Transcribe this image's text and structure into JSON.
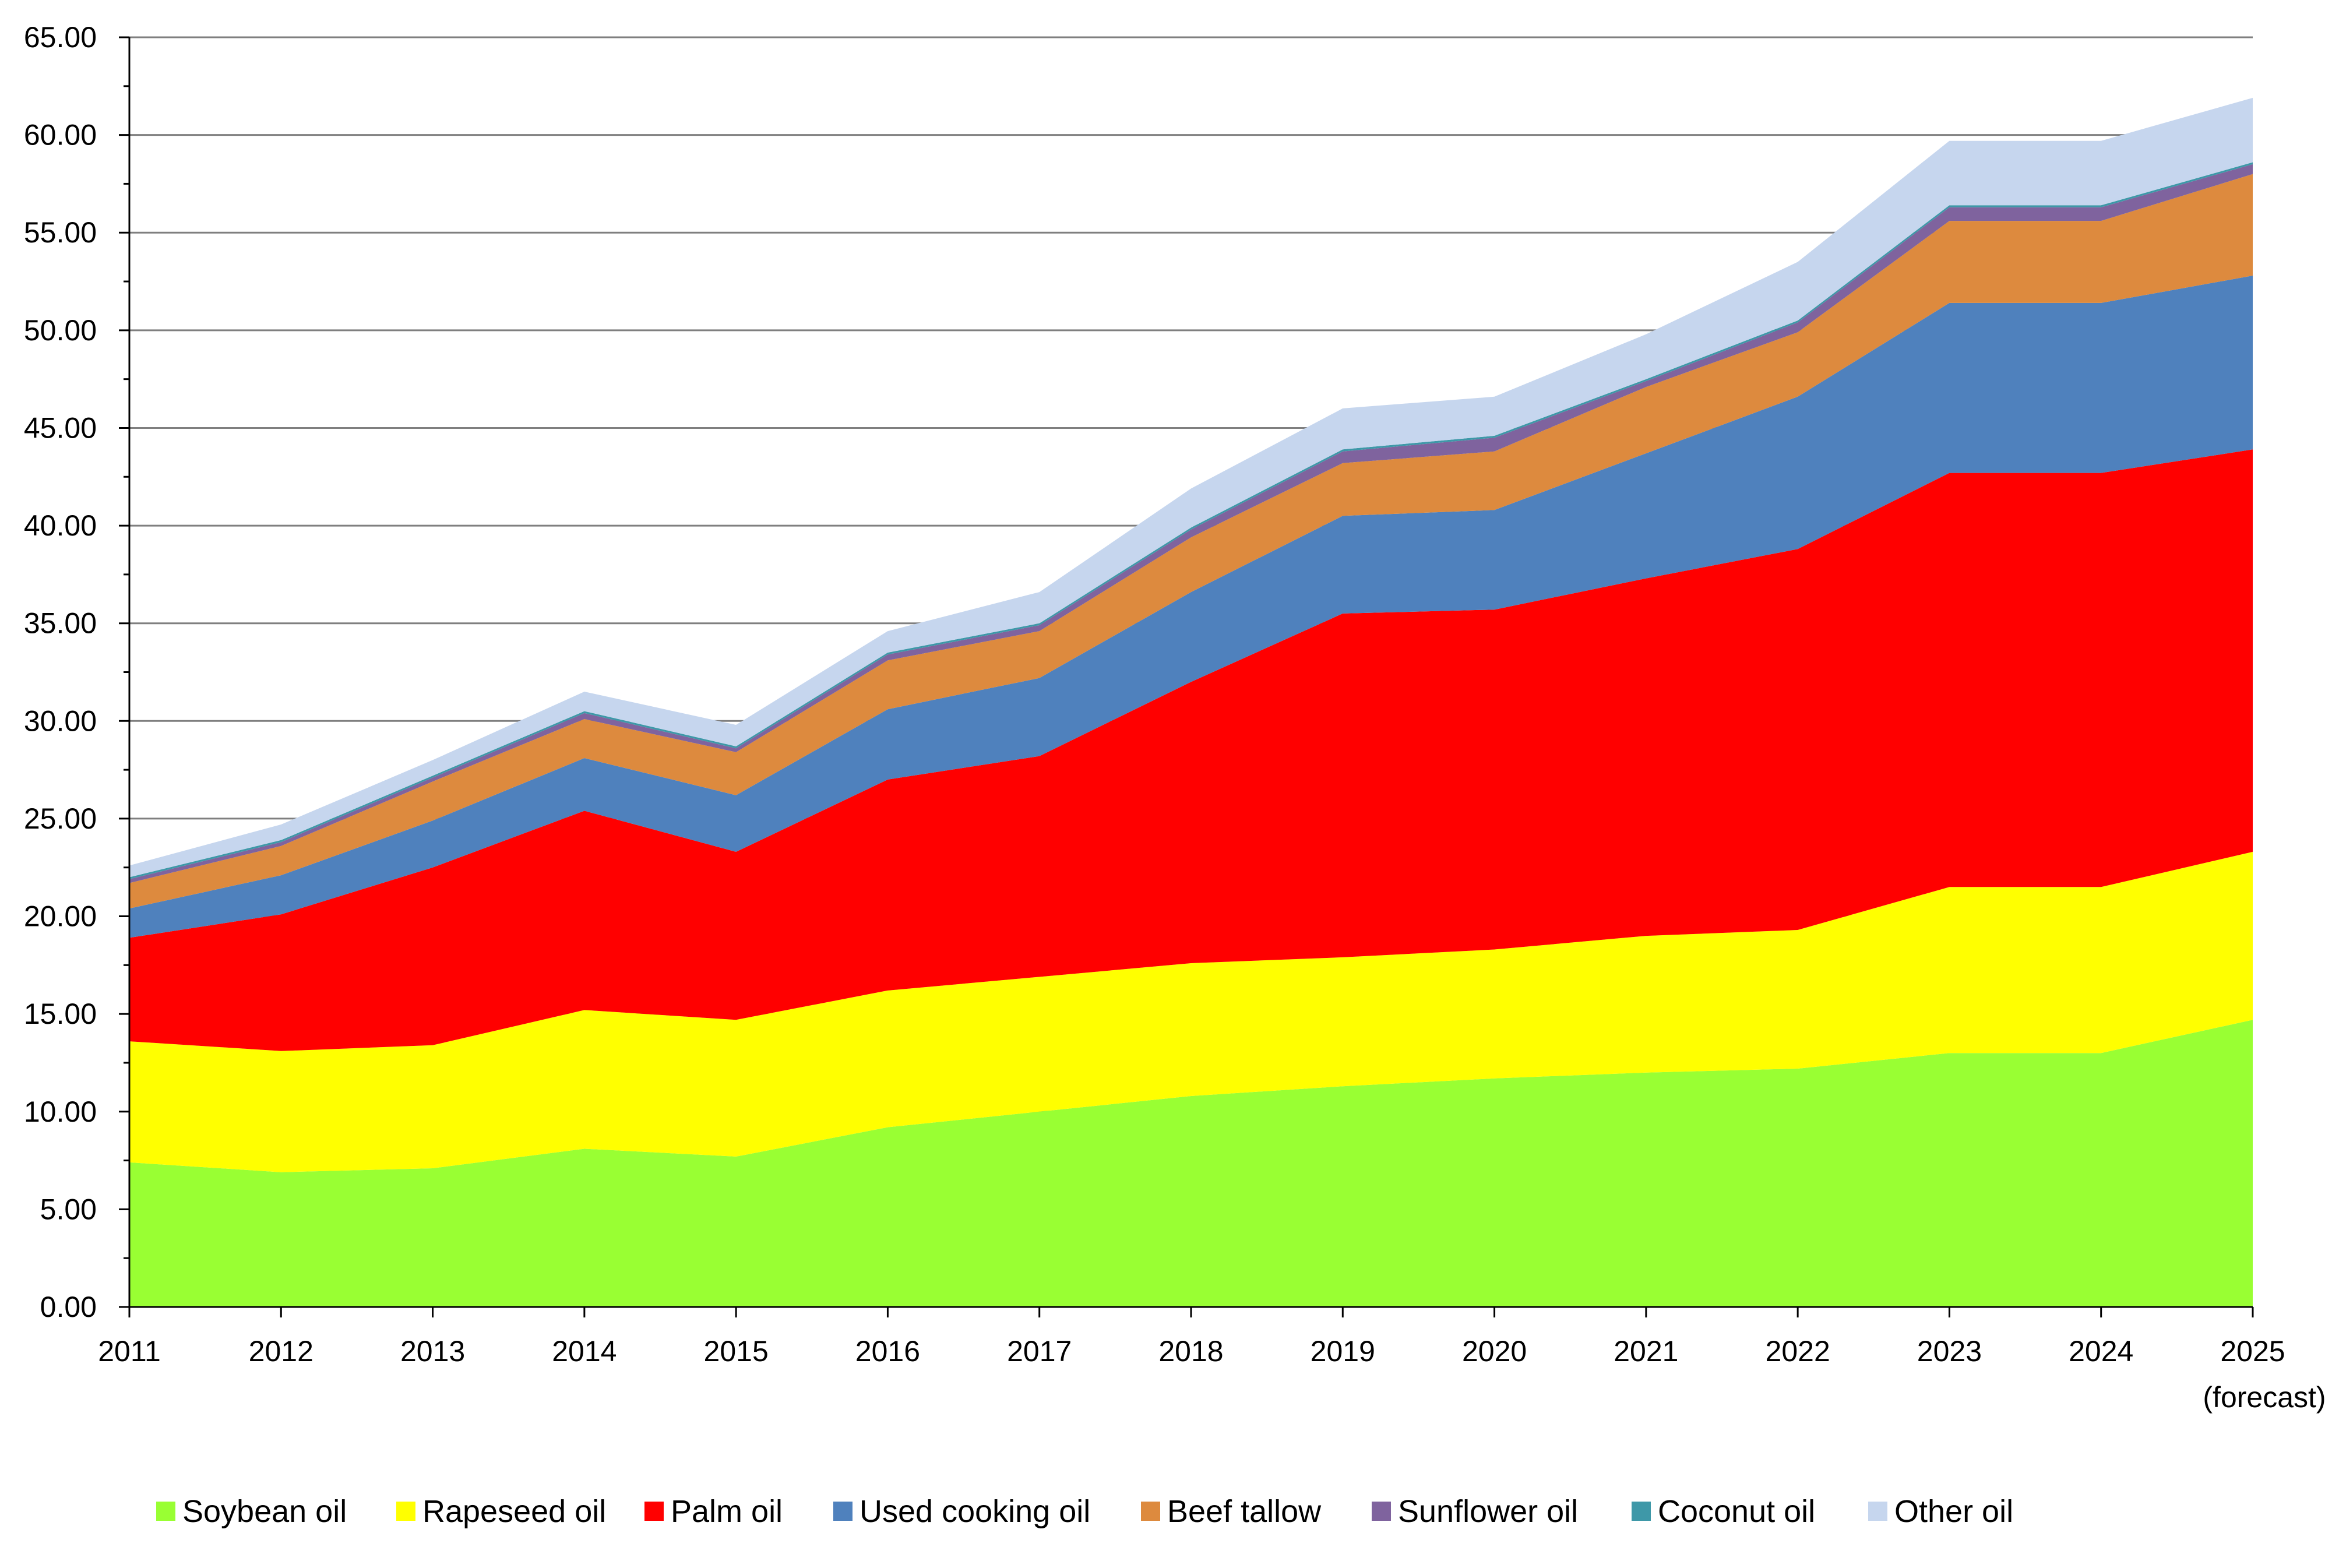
{
  "chart_data": {
    "type": "area",
    "stacked": true,
    "title": "",
    "xlabel": "",
    "ylabel": "",
    "ylim": [
      0,
      65
    ],
    "y_ticks": [
      "0.00",
      "5.00",
      "10.00",
      "15.00",
      "20.00",
      "25.00",
      "30.00",
      "35.00",
      "40.00",
      "45.00",
      "50.00",
      "55.00",
      "60.00",
      "65.00"
    ],
    "categories": [
      "2011",
      "2012",
      "2013",
      "2014",
      "2015",
      "2016",
      "2017",
      "2018",
      "2019",
      "2020",
      "2021",
      "2022",
      "2023",
      "2024",
      "2025"
    ],
    "category_note": "(forecast)",
    "grid": "horizontal",
    "legend_position": "bottom",
    "series": [
      {
        "name": "Soybean oil",
        "color": "#99ff33",
        "values": [
          7.4,
          6.9,
          7.1,
          8.1,
          7.7,
          9.2,
          10.0,
          10.8,
          11.3,
          11.7,
          12.0,
          12.2,
          13.0,
          13.0,
          14.7
        ]
      },
      {
        "name": "Rapeseed oil",
        "color": "#ffff00",
        "values": [
          6.2,
          6.2,
          6.3,
          7.1,
          7.0,
          7.0,
          6.9,
          6.8,
          6.6,
          6.6,
          7.0,
          7.1,
          8.5,
          8.5,
          8.6
        ]
      },
      {
        "name": "Palm oil",
        "color": "#ff0000",
        "values": [
          5.3,
          7.0,
          9.1,
          10.2,
          8.6,
          10.8,
          11.3,
          14.4,
          17.6,
          17.4,
          18.3,
          19.5,
          21.2,
          21.2,
          20.6
        ]
      },
      {
        "name": "Used cooking oil",
        "color": "#4f81bd",
        "values": [
          1.5,
          2.0,
          2.4,
          2.7,
          2.9,
          3.6,
          4.0,
          4.6,
          5.0,
          5.1,
          6.4,
          7.8,
          8.7,
          8.7,
          8.9
        ]
      },
      {
        "name": "Beef tallow",
        "color": "#dd8a3e",
        "values": [
          1.3,
          1.5,
          2.0,
          2.0,
          2.2,
          2.5,
          2.4,
          2.8,
          2.7,
          3.0,
          3.4,
          3.3,
          4.2,
          4.2,
          5.2
        ]
      },
      {
        "name": "Sunflower oil",
        "color": "#7f639e",
        "values": [
          0.2,
          0.2,
          0.2,
          0.3,
          0.2,
          0.3,
          0.3,
          0.4,
          0.6,
          0.7,
          0.3,
          0.5,
          0.7,
          0.7,
          0.5
        ]
      },
      {
        "name": "Coconut oil",
        "color": "#3e98a8",
        "values": [
          0.1,
          0.1,
          0.1,
          0.1,
          0.1,
          0.1,
          0.1,
          0.1,
          0.1,
          0.1,
          0.1,
          0.1,
          0.1,
          0.1,
          0.1
        ]
      },
      {
        "name": "Other oil",
        "color": "#c6d6ee",
        "values": [
          0.6,
          0.8,
          0.8,
          1.0,
          1.1,
          1.1,
          1.6,
          2.0,
          2.1,
          2.0,
          2.3,
          3.0,
          3.3,
          3.3,
          3.3
        ]
      }
    ]
  }
}
